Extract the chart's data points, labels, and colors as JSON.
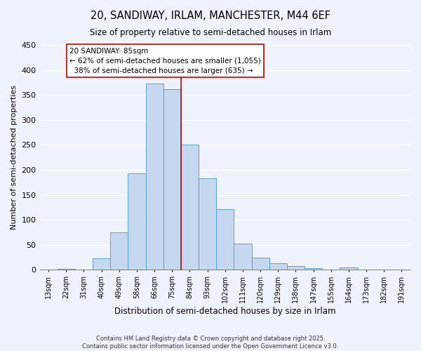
{
  "title": "20, SANDIWAY, IRLAM, MANCHESTER, M44 6EF",
  "subtitle": "Size of property relative to semi-detached houses in Irlam",
  "xlabel": "Distribution of semi-detached houses by size in Irlam",
  "ylabel": "Number of semi-detached properties",
  "bar_labels": [
    "13sqm",
    "22sqm",
    "31sqm",
    "40sqm",
    "49sqm",
    "58sqm",
    "66sqm",
    "75sqm",
    "84sqm",
    "93sqm",
    "102sqm",
    "111sqm",
    "120sqm",
    "129sqm",
    "138sqm",
    "147sqm",
    "155sqm",
    "164sqm",
    "173sqm",
    "182sqm",
    "191sqm"
  ],
  "bar_values": [
    0,
    2,
    0,
    23,
    75,
    193,
    373,
    362,
    251,
    183,
    121,
    53,
    25,
    13,
    8,
    3,
    0,
    5,
    0,
    0,
    0
  ],
  "bar_color": "#c5d8f0",
  "bar_edge_color": "#5a9fd4",
  "vline_pos": 7.5,
  "property_label": "20 SANDIWAY: 85sqm",
  "pct_smaller": 62,
  "count_smaller": 1055,
  "pct_larger": 38,
  "count_larger": 635,
  "vline_color": "#cc0000",
  "ylim": [
    0,
    450
  ],
  "yticks": [
    0,
    50,
    100,
    150,
    200,
    250,
    300,
    350,
    400,
    450
  ],
  "bg_color": "#eef2fb",
  "grid_color": "#ffffff",
  "footnote1": "Contains HM Land Registry data © Crown copyright and database right 2025.",
  "footnote2": "Contains public sector information licensed under the Open Government Licence v3.0."
}
